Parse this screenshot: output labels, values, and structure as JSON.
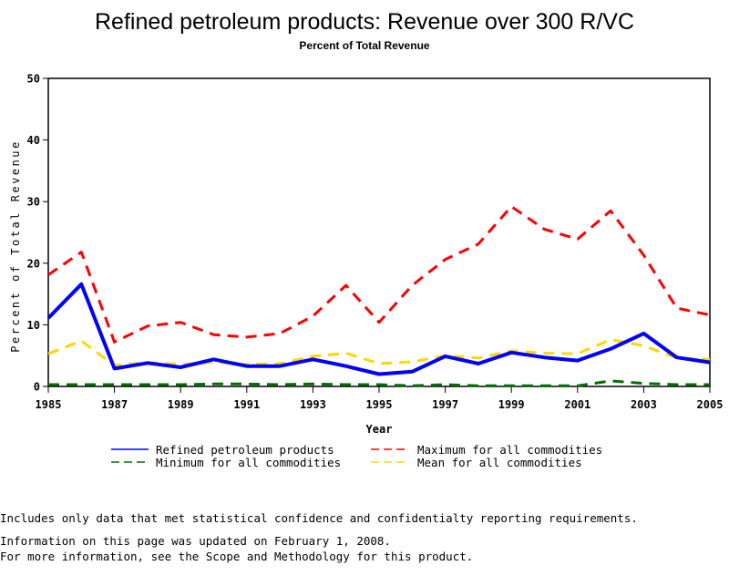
{
  "chart_data": {
    "type": "line",
    "title": "Refined petroleum products: Revenue over 300 R/VC",
    "subtitle": "Percent of Total Revenue",
    "xlabel": "Year",
    "ylabel": "Percent of Total Revenue",
    "xlim": [
      1985,
      2005
    ],
    "ylim": [
      0,
      50
    ],
    "x_ticks": [
      "1985",
      "1987",
      "1989",
      "1991",
      "1993",
      "1995",
      "1997",
      "1999",
      "2001",
      "2003",
      "2005"
    ],
    "y_ticks": [
      "0",
      "10",
      "20",
      "30",
      "40",
      "50"
    ],
    "grid": false,
    "legend_position": "bottom",
    "x": [
      1985,
      1986,
      1987,
      1988,
      1989,
      1990,
      1991,
      1992,
      1993,
      1994,
      1995,
      1996,
      1997,
      1998,
      1999,
      2000,
      2001,
      2002,
      2003,
      2004,
      2005
    ],
    "series": [
      {
        "name": "Refined petroleum products",
        "color": "#0000ff",
        "style": "solid",
        "values": [
          11.1,
          16.6,
          2.9,
          3.8,
          3.1,
          4.4,
          3.3,
          3.3,
          4.4,
          3.3,
          2.0,
          2.4,
          4.9,
          3.7,
          5.5,
          4.7,
          4.2,
          6.1,
          8.6,
          4.7,
          3.9
        ]
      },
      {
        "name": "Maximum for all commodities",
        "color": "#ff0000",
        "style": "dashed",
        "values": [
          18.1,
          21.8,
          7.2,
          9.8,
          10.4,
          8.4,
          8.0,
          8.6,
          11.4,
          16.4,
          10.4,
          16.4,
          20.6,
          23.1,
          29.2,
          25.5,
          23.9,
          28.5,
          21.3,
          12.7,
          11.6
        ]
      },
      {
        "name": "Minimum for all commodities",
        "color": "#007000",
        "style": "dashed",
        "values": [
          0.3,
          0.3,
          0.3,
          0.3,
          0.3,
          0.4,
          0.4,
          0.3,
          0.4,
          0.3,
          0.3,
          0.1,
          0.3,
          0.1,
          0.1,
          0.1,
          0.1,
          0.9,
          0.5,
          0.3,
          0.3
        ]
      },
      {
        "name": "Mean for all commodities",
        "color": "#ffd700",
        "style": "dashed",
        "values": [
          5.3,
          7.4,
          3.4,
          3.9,
          3.6,
          3.9,
          3.6,
          3.7,
          4.9,
          5.4,
          3.7,
          4.0,
          5.0,
          4.6,
          5.8,
          5.4,
          5.3,
          7.6,
          6.6,
          4.6,
          4.4
        ]
      }
    ]
  },
  "notes": {
    "line1": "Includes only data that met statistical confidence and confidentialty reporting requirements.",
    "line2": "For more information, see the Scope and Methodology for this product.",
    "updated": "Information on this page was updated on February 1, 2008."
  }
}
